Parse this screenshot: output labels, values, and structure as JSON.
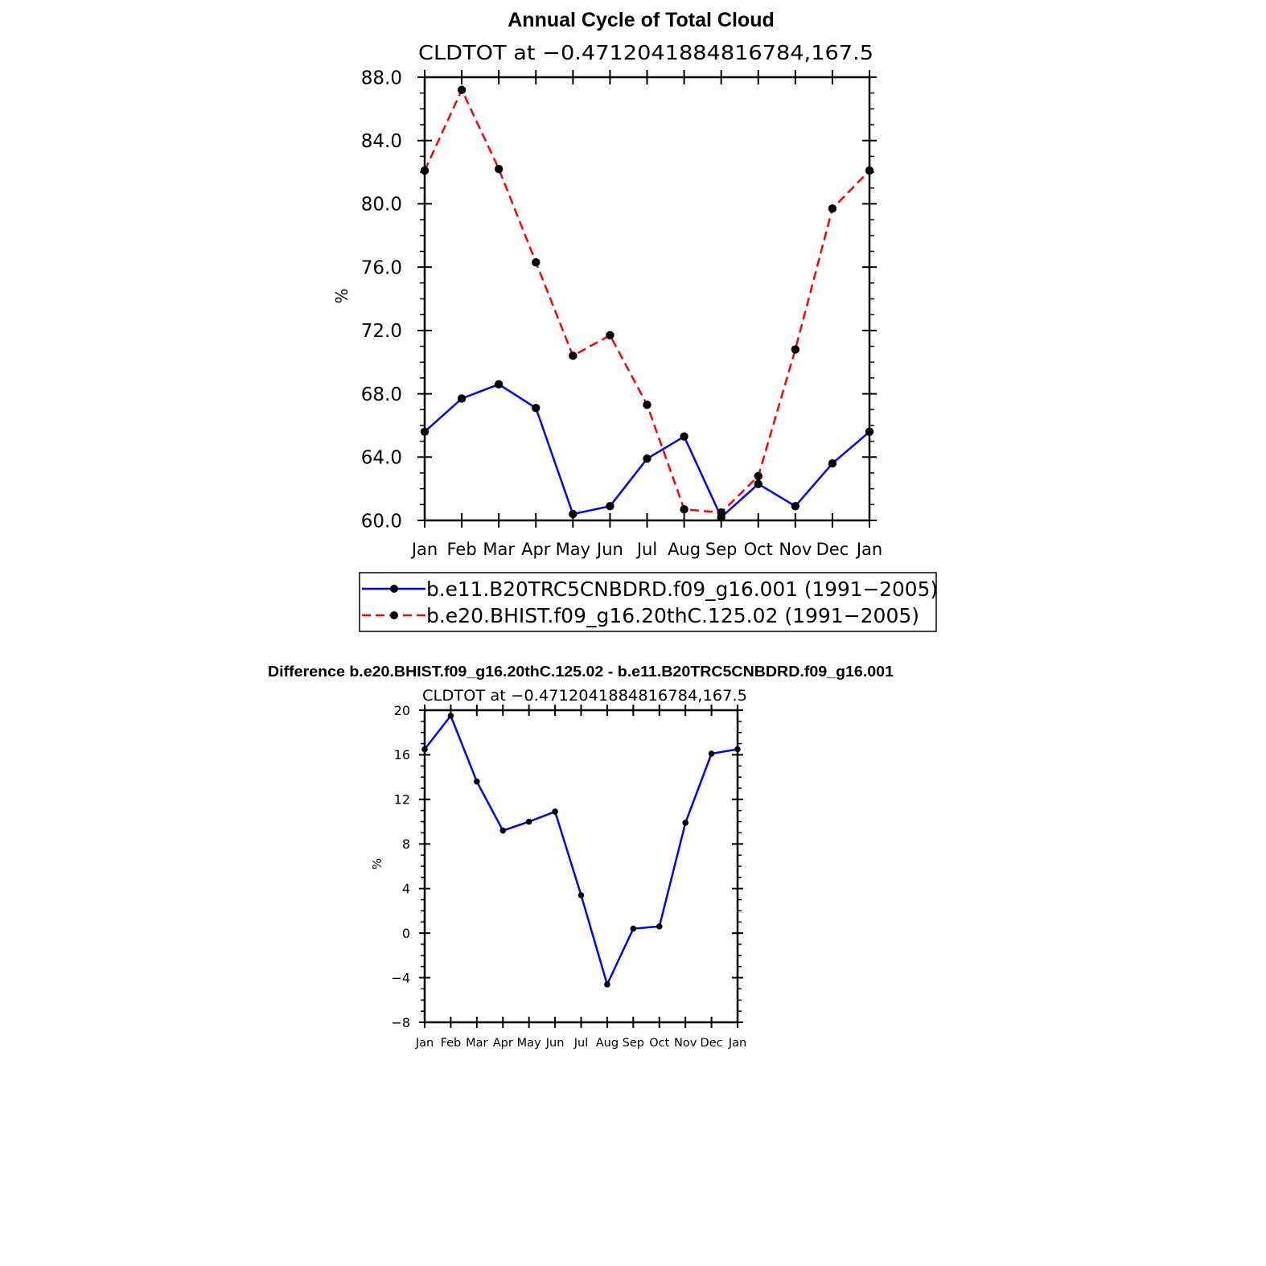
{
  "chart_data": [
    {
      "type": "line",
      "title": "Annual Cycle of Total Cloud",
      "subtitle": "CLDTOT at −0.4712041884816784,167.5",
      "ylabel": "%",
      "xlabel": "",
      "categories": [
        "Jan",
        "Feb",
        "Mar",
        "Apr",
        "May",
        "Jun",
        "Jul",
        "Aug",
        "Sep",
        "Oct",
        "Nov",
        "Dec",
        "Jan"
      ],
      "ylim": [
        60,
        88
      ],
      "yticks": [
        "60.0",
        "64.0",
        "68.0",
        "72.0",
        "76.0",
        "80.0",
        "84.0",
        "88.0"
      ],
      "legend_position": "bottom",
      "series": [
        {
          "name": "b.e11.B20TRC5CNBDRD.f09_g16.001 (1991−2005)",
          "color": "#0000ff",
          "style": "solid",
          "values": [
            65.6,
            67.7,
            68.6,
            67.1,
            60.4,
            60.9,
            63.9,
            65.3,
            60.2,
            62.3,
            60.9,
            63.6,
            65.6
          ]
        },
        {
          "name": "b.e20.BHIST.f09_g16.20thC.125.02 (1991−2005)",
          "color": "#ff0000",
          "style": "dashed",
          "values": [
            82.1,
            87.2,
            82.2,
            76.3,
            70.4,
            71.7,
            67.3,
            60.7,
            60.5,
            62.8,
            70.8,
            79.7,
            82.1
          ]
        }
      ]
    },
    {
      "type": "line",
      "title": "Difference b.e20.BHIST.f09_g16.20thC.125.02 - b.e11.B20TRC5CNBDRD.f09_g16.001",
      "subtitle": "CLDTOT at −0.4712041884816784,167.5",
      "ylabel": "%",
      "xlabel": "",
      "categories": [
        "Jan",
        "Feb",
        "Mar",
        "Apr",
        "May",
        "Jun",
        "Jul",
        "Aug",
        "Sep",
        "Oct",
        "Nov",
        "Dec",
        "Jan"
      ],
      "ylim": [
        -8,
        20
      ],
      "yticks": [
        "−8",
        "−4",
        "0",
        "4",
        "8",
        "12",
        "16",
        "20"
      ],
      "series": [
        {
          "name": "Difference",
          "color": "#0000ff",
          "style": "solid",
          "values": [
            16.5,
            19.5,
            13.6,
            9.2,
            10.0,
            10.9,
            3.4,
            -4.6,
            0.4,
            0.6,
            9.9,
            16.1,
            16.5
          ]
        }
      ]
    }
  ]
}
